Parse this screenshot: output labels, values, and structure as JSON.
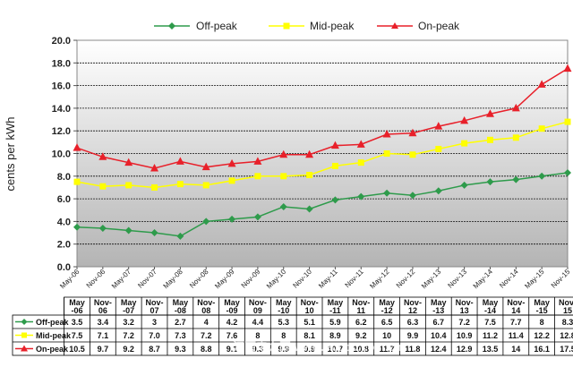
{
  "chart_data": {
    "type": "line",
    "title": "",
    "xlabel": "",
    "ylabel": "cents per kWh",
    "ylim": [
      0,
      20
    ],
    "yticks": [
      "0.0",
      "2.0",
      "4.0",
      "6.0",
      "8.0",
      "10.0",
      "12.0",
      "14.0",
      "16.0",
      "18.0",
      "20.0"
    ],
    "categories": [
      "May-06",
      "Nov-06",
      "May-07",
      "Nov-07",
      "May-08",
      "Nov-08",
      "May-09",
      "Nov-09",
      "May-10",
      "Nov-10",
      "May-11",
      "Nov-11",
      "May-12",
      "Nov-12",
      "May-13",
      "Nov-13",
      "May-14",
      "Nov-14",
      "May-15",
      "Nov-15"
    ],
    "table_headers": [
      [
        "May",
        "-06"
      ],
      [
        "Nov-",
        "06"
      ],
      [
        "May",
        "-07"
      ],
      [
        "Nov-",
        "07"
      ],
      [
        "May",
        "-08"
      ],
      [
        "Nov-",
        "08"
      ],
      [
        "May",
        "-09"
      ],
      [
        "Nov-",
        "09"
      ],
      [
        "May",
        "-10"
      ],
      [
        "Nov-",
        "10"
      ],
      [
        "May",
        "-11"
      ],
      [
        "Nov-",
        "11"
      ],
      [
        "May",
        "-12"
      ],
      [
        "Nov-",
        "12"
      ],
      [
        "May",
        "-13"
      ],
      [
        "Nov-",
        "13"
      ],
      [
        "May",
        "-14"
      ],
      [
        "Nov-",
        "14"
      ],
      [
        "May",
        "-15"
      ],
      [
        "Nov-",
        "15"
      ]
    ],
    "series": [
      {
        "name": "Off-peak",
        "color": "#2e9b4b",
        "marker": "diamond",
        "values": [
          3.5,
          3.4,
          3.2,
          3,
          2.7,
          4,
          4.2,
          4.4,
          5.3,
          5.1,
          5.9,
          6.2,
          6.5,
          6.3,
          6.7,
          7.2,
          7.5,
          7.7,
          8,
          8.3
        ],
        "labels": [
          "3.5",
          "3.4",
          "3.2",
          "3",
          "2.7",
          "4",
          "4.2",
          "4.4",
          "5.3",
          "5.1",
          "5.9",
          "6.2",
          "6.5",
          "6.3",
          "6.7",
          "7.2",
          "7.5",
          "7.7",
          "8",
          "8.3"
        ]
      },
      {
        "name": "Mid-peak",
        "color": "#ffff00",
        "marker": "square",
        "values": [
          7.5,
          7.1,
          7.2,
          7,
          7.3,
          7.2,
          7.6,
          8,
          8,
          8.1,
          8.9,
          9.2,
          10,
          9.9,
          10.4,
          10.9,
          11.2,
          11.4,
          12.2,
          12.8
        ],
        "labels": [
          "7.5",
          "7.1",
          "7.2",
          "7.0",
          "7.3",
          "7.2",
          "7.6",
          "8",
          "8",
          "8.1",
          "8.9",
          "9.2",
          "10",
          "9.9",
          "10.4",
          "10.9",
          "11.2",
          "11.4",
          "12.2",
          "12.8"
        ]
      },
      {
        "name": "On-peak",
        "color": "#e8202a",
        "marker": "triangle",
        "values": [
          10.5,
          9.7,
          9.2,
          8.7,
          9.3,
          8.8,
          9.1,
          9.3,
          9.9,
          9.9,
          10.7,
          10.8,
          11.7,
          11.8,
          12.4,
          12.9,
          13.5,
          14,
          16.1,
          17.5
        ],
        "labels": [
          "10.5",
          "9.7",
          "9.2",
          "8.7",
          "9.3",
          "8.8",
          "9.1",
          "9.3",
          "9.9",
          "9.9",
          "10.7",
          "10.8",
          "11.7",
          "11.8",
          "12.4",
          "12.9",
          "13.5",
          "14",
          "16.1",
          "17.5"
        ]
      }
    ],
    "legend_position": "top",
    "grid": true
  },
  "watermark": "江西电力网 www.epcpc.com.cn"
}
